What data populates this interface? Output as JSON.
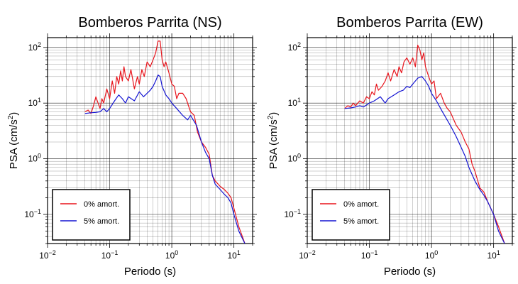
{
  "chart_data": [
    {
      "type": "line",
      "title": "Bomberos Parrita (NS)",
      "xlabel": "Periodo (s)",
      "ylabel_main": "PSA (cm/s",
      "ylabel_sup": "2",
      "ylabel_tail": ")",
      "x_scale": "log",
      "y_scale": "log",
      "xlim": [
        0.01,
        20
      ],
      "ylim": [
        0.03,
        150
      ],
      "grid": true,
      "legend_position": "bottom-left",
      "x_ticks": [
        {
          "value": 0.01,
          "base": "10",
          "exp": "−2"
        },
        {
          "value": 0.1,
          "base": "10",
          "exp": "−1"
        },
        {
          "value": 1,
          "base": "10",
          "exp": "0"
        },
        {
          "value": 10,
          "base": "10",
          "exp": "1"
        }
      ],
      "y_ticks": [
        {
          "value": 0.1,
          "base": "10",
          "exp": "−1"
        },
        {
          "value": 1,
          "base": "10",
          "exp": "0"
        },
        {
          "value": 10,
          "base": "10",
          "exp": "1"
        },
        {
          "value": 100,
          "base": "10",
          "exp": "2"
        }
      ],
      "series": [
        {
          "name": "0% amort.",
          "color": "#e8141c",
          "x": [
            0.04,
            0.045,
            0.05,
            0.055,
            0.06,
            0.065,
            0.07,
            0.075,
            0.08,
            0.09,
            0.1,
            0.11,
            0.12,
            0.13,
            0.14,
            0.15,
            0.16,
            0.17,
            0.18,
            0.2,
            0.22,
            0.25,
            0.28,
            0.3,
            0.33,
            0.36,
            0.4,
            0.45,
            0.5,
            0.55,
            0.6,
            0.65,
            0.7,
            0.75,
            0.8,
            0.9,
            1.0,
            1.1,
            1.2,
            1.3,
            1.5,
            1.7,
            2.0,
            2.3,
            2.6,
            3.0,
            3.5,
            4.0,
            4.5,
            5.0,
            6.0,
            7.0,
            8.0,
            9.0,
            10,
            12,
            15
          ],
          "y": [
            7.0,
            7.5,
            6.5,
            9.0,
            13,
            10,
            8.0,
            12,
            10,
            18,
            12,
            25,
            15,
            30,
            22,
            38,
            25,
            45,
            30,
            25,
            40,
            18,
            30,
            22,
            40,
            30,
            55,
            45,
            60,
            80,
            130,
            130,
            60,
            45,
            55,
            35,
            22,
            20,
            12,
            15,
            15,
            12,
            7.0,
            6.0,
            3.0,
            2.0,
            1.6,
            1.2,
            0.5,
            0.4,
            0.32,
            0.28,
            0.24,
            0.2,
            0.13,
            0.06,
            0.03
          ]
        },
        {
          "name": "5% amort.",
          "color": "#1414d2",
          "x": [
            0.04,
            0.05,
            0.06,
            0.07,
            0.08,
            0.09,
            0.1,
            0.12,
            0.14,
            0.16,
            0.18,
            0.2,
            0.25,
            0.3,
            0.35,
            0.4,
            0.45,
            0.5,
            0.55,
            0.6,
            0.65,
            0.7,
            0.8,
            0.9,
            1.0,
            1.2,
            1.5,
            1.8,
            2.0,
            2.5,
            3.0,
            3.5,
            4.0,
            4.5,
            5.0,
            6.0,
            7.0,
            8.0,
            9.0,
            10,
            12,
            15
          ],
          "y": [
            6.5,
            6.7,
            6.8,
            7.0,
            8.0,
            7.0,
            8.0,
            11,
            14,
            12,
            10,
            13,
            11,
            16,
            13,
            15,
            17,
            20,
            25,
            32,
            30,
            20,
            14,
            12,
            10,
            8.0,
            6.0,
            5.0,
            6.0,
            4.0,
            2.0,
            1.3,
            1.0,
            0.5,
            0.35,
            0.28,
            0.23,
            0.2,
            0.16,
            0.1,
            0.05,
            0.03
          ]
        }
      ]
    },
    {
      "type": "line",
      "title": "Bomberos Parrita (EW)",
      "xlabel": "Periodo (s)",
      "ylabel_main": "PSA (cm/s",
      "ylabel_sup": "2",
      "ylabel_tail": ")",
      "x_scale": "log",
      "y_scale": "log",
      "xlim": [
        0.01,
        20
      ],
      "ylim": [
        0.03,
        150
      ],
      "grid": true,
      "legend_position": "bottom-left",
      "x_ticks": [
        {
          "value": 0.01,
          "base": "10",
          "exp": "−2"
        },
        {
          "value": 0.1,
          "base": "10",
          "exp": "−1"
        },
        {
          "value": 1,
          "base": "10",
          "exp": "0"
        },
        {
          "value": 10,
          "base": "10",
          "exp": "1"
        }
      ],
      "y_ticks": [
        {
          "value": 0.1,
          "base": "10",
          "exp": "−1"
        },
        {
          "value": 1,
          "base": "10",
          "exp": "0"
        },
        {
          "value": 10,
          "base": "10",
          "exp": "1"
        },
        {
          "value": 100,
          "base": "10",
          "exp": "2"
        }
      ],
      "series": [
        {
          "name": "0% amort.",
          "color": "#e8141c",
          "x": [
            0.04,
            0.045,
            0.05,
            0.055,
            0.06,
            0.07,
            0.08,
            0.09,
            0.1,
            0.11,
            0.12,
            0.13,
            0.14,
            0.16,
            0.18,
            0.2,
            0.22,
            0.25,
            0.28,
            0.3,
            0.33,
            0.36,
            0.4,
            0.45,
            0.5,
            0.55,
            0.6,
            0.65,
            0.7,
            0.75,
            0.8,
            0.9,
            1.0,
            1.1,
            1.2,
            1.4,
            1.6,
            1.8,
            2.0,
            2.5,
            3.0,
            3.5,
            4.0,
            4.5,
            5.0,
            6.0,
            7.0,
            8.0,
            10,
            12,
            15
          ],
          "y": [
            8.0,
            9.0,
            8.5,
            10,
            9.0,
            11,
            10,
            13,
            12,
            16,
            14,
            22,
            17,
            20,
            25,
            35,
            25,
            40,
            30,
            45,
            35,
            55,
            65,
            50,
            65,
            45,
            110,
            90,
            60,
            80,
            45,
            30,
            22,
            25,
            12,
            15,
            10,
            8.0,
            7.0,
            4.0,
            3.0,
            2.0,
            1.5,
            0.8,
            0.6,
            0.3,
            0.25,
            0.17,
            0.1,
            0.06,
            0.03
          ]
        },
        {
          "name": "5% amort.",
          "color": "#1414d2",
          "x": [
            0.04,
            0.05,
            0.06,
            0.07,
            0.08,
            0.1,
            0.12,
            0.15,
            0.18,
            0.2,
            0.25,
            0.3,
            0.35,
            0.4,
            0.45,
            0.5,
            0.6,
            0.7,
            0.8,
            0.9,
            1.0,
            1.2,
            1.5,
            2.0,
            2.5,
            3.0,
            3.5,
            4.0,
            5.0,
            6.0,
            7.0,
            8.0,
            10,
            12,
            15
          ],
          "y": [
            8.0,
            8.2,
            8.5,
            9.0,
            8.5,
            10,
            11,
            13,
            10,
            12,
            14,
            16,
            17,
            20,
            19,
            22,
            28,
            30,
            25,
            20,
            15,
            11,
            7.0,
            4.0,
            2.5,
            1.6,
            1.1,
            0.7,
            0.4,
            0.28,
            0.22,
            0.17,
            0.1,
            0.05,
            0.03
          ]
        }
      ]
    }
  ]
}
